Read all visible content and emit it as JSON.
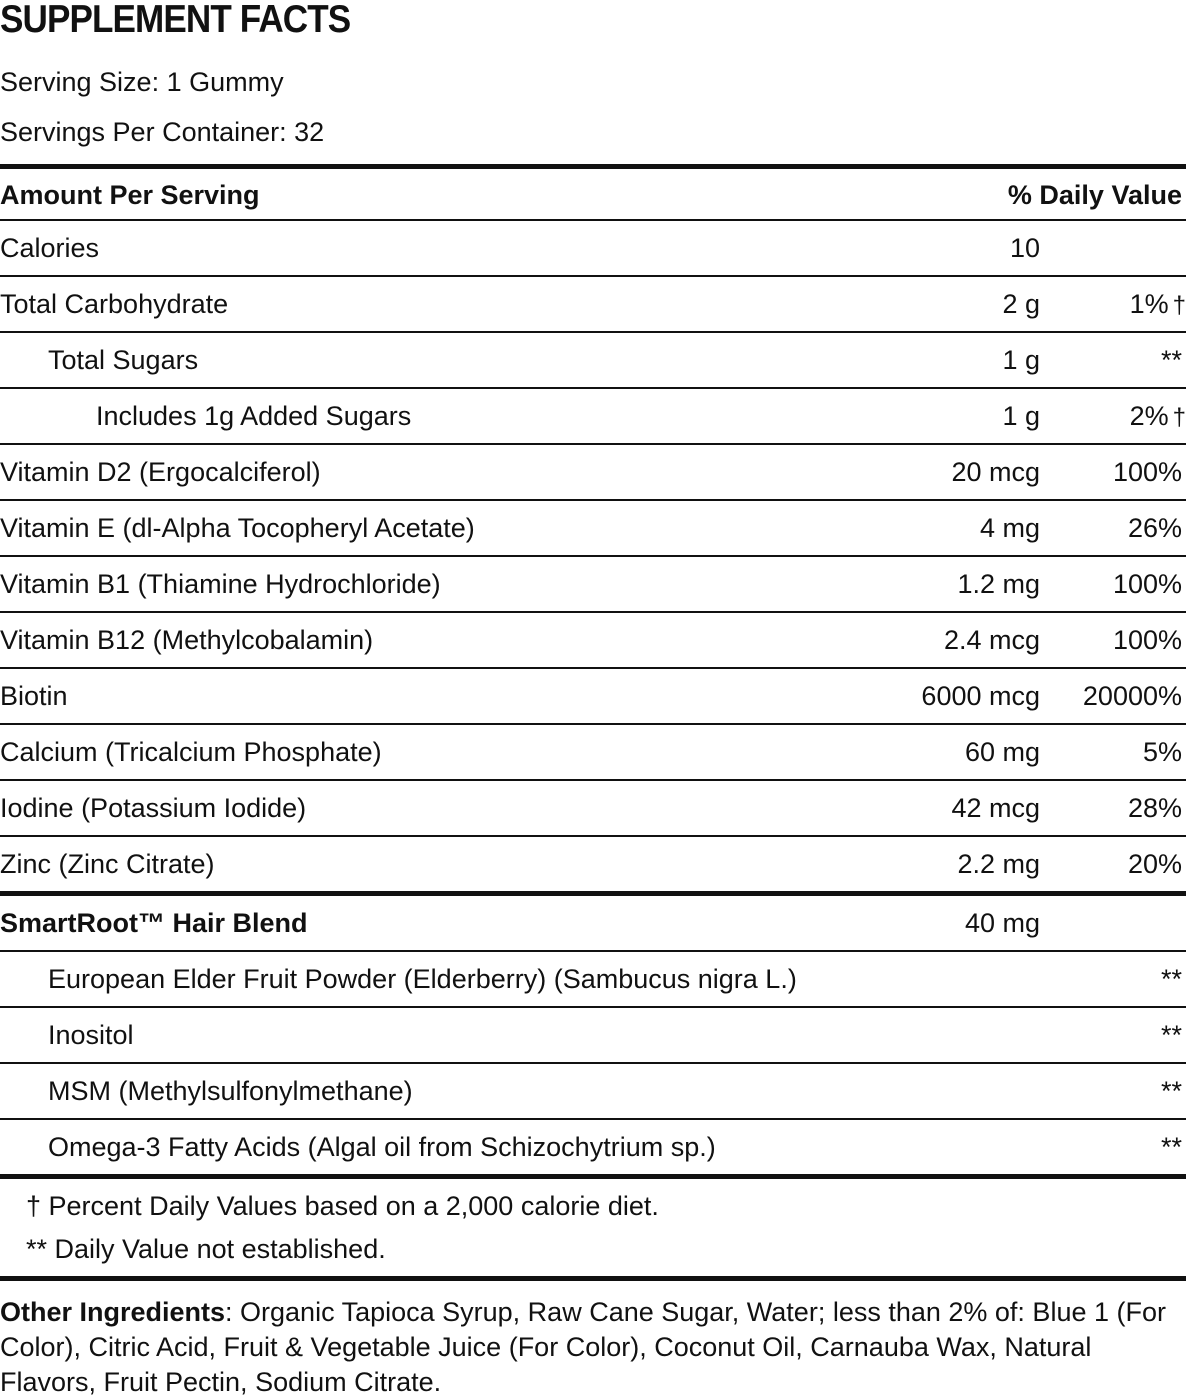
{
  "title": "SUPPLEMENT FACTS",
  "serving_size": "Serving Size: 1 Gummy",
  "servings_per_container": "Servings Per Container: 32",
  "header": {
    "amount": "Amount Per Serving",
    "dv": "% Daily Value"
  },
  "rows": [
    {
      "name": "Calories",
      "amount": "10"
    },
    {
      "name": "Total Carbohydrate",
      "amount": "2 g",
      "dv": "1%",
      "mark": "†"
    },
    {
      "name": "Total Sugars",
      "amount": "1 g",
      "dv": "**"
    },
    {
      "name": "Includes 1g Added Sugars",
      "amount": "1 g",
      "dv": "2%",
      "mark": "†"
    },
    {
      "name": "Vitamin D2 (Ergocalciferol)",
      "amount": "20 mcg",
      "dv": "100%"
    },
    {
      "name": "Vitamin E (dl-Alpha Tocopheryl Acetate)",
      "amount": "4 mg",
      "dv": "26%"
    },
    {
      "name": "Vitamin B1 (Thiamine Hydrochloride)",
      "amount": "1.2 mg",
      "dv": "100%"
    },
    {
      "name": "Vitamin B12 (Methylcobalamin)",
      "amount": "2.4 mcg",
      "dv": "100%"
    },
    {
      "name": "Biotin",
      "amount": "6000 mcg",
      "dv": "20000%"
    },
    {
      "name": "Calcium (Tricalcium Phosphate)",
      "amount": "60 mg",
      "dv": "5%"
    },
    {
      "name": "Iodine (Potassium Iodide)",
      "amount": "42 mcg",
      "dv": "28%"
    },
    {
      "name": "Zinc (Zinc Citrate)",
      "amount": "2.2 mg",
      "dv": "20%"
    }
  ],
  "blend": {
    "name": "SmartRoot™ Hair Blend",
    "amount": "40 mg"
  },
  "blend_rows": [
    {
      "name": "European Elder Fruit Powder (Elderberry) (Sambucus nigra L.)",
      "dv": "**"
    },
    {
      "name": "Inositol",
      "dv": "**"
    },
    {
      "name": "MSM (Methylsulfonylmethane)",
      "dv": "**"
    },
    {
      "name": "Omega-3 Fatty Acids (Algal oil from Schizochytrium sp.)",
      "dv": "**"
    }
  ],
  "footnotes": [
    "† Percent Daily Values based on a 2,000 calorie diet.",
    "** Daily Value not established."
  ],
  "other_ingredients": {
    "label": "Other Ingredients",
    "text": ": Organic Tapioca Syrup, Raw Cane Sugar, Water; less than 2% of: Blue 1 (For Color), Citric Acid, Fruit & Vegetable Juice (For Color), Coconut Oil, Carnauba Wax, Natural Flavors, Fruit Pectin, Sodium Citrate."
  }
}
